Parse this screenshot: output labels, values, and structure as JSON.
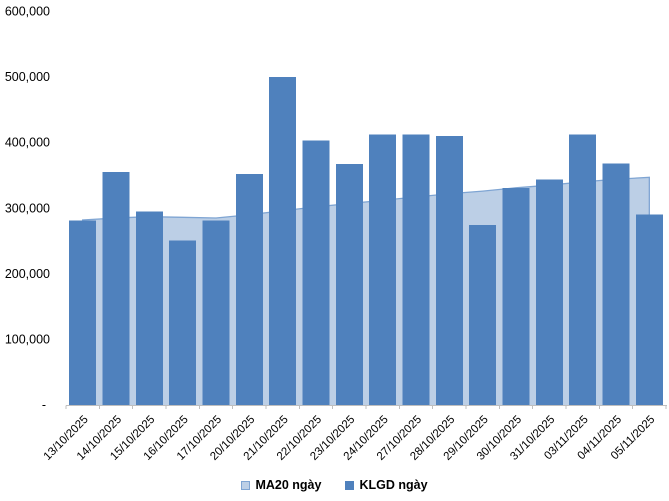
{
  "chart_data": {
    "type": "combo",
    "title": "",
    "xlabel": "",
    "ylabel": "",
    "categories": [
      "13/10/2025",
      "14/10/2025",
      "15/10/2025",
      "16/10/2025",
      "17/10/2025",
      "20/10/2025",
      "21/10/2025",
      "22/10/2025",
      "23/10/2025",
      "24/10/2025",
      "27/10/2025",
      "28/10/2025",
      "29/10/2025",
      "30/10/2025",
      "31/10/2025",
      "03/11/2025",
      "04/11/2025",
      "05/11/2025"
    ],
    "series": [
      {
        "name": "MA20 ngày",
        "type": "area",
        "color": "#BCCFE6",
        "line_color": "#7FA5D3",
        "values": [
          282000,
          285000,
          287000,
          286000,
          285000,
          290000,
          296000,
          302000,
          307000,
          312000,
          317000,
          322000,
          326000,
          331000,
          335000,
          340000,
          344000,
          347000
        ]
      },
      {
        "name": "KLGD ngày",
        "type": "bar",
        "color": "#4F81BD",
        "values": [
          281000,
          355000,
          295000,
          251000,
          281000,
          352000,
          500000,
          403000,
          367000,
          412000,
          412000,
          410000,
          274000,
          331000,
          344000,
          412000,
          368000,
          290000
        ]
      }
    ],
    "ylim": [
      0,
      600000
    ],
    "yticks": [
      {
        "value": 600000,
        "label": "600,000"
      },
      {
        "value": 500000,
        "label": "500,000"
      },
      {
        "value": 400000,
        "label": "400,000"
      },
      {
        "value": 300000,
        "label": "300,000"
      },
      {
        "value": 200000,
        "label": "200,000"
      },
      {
        "value": 100000,
        "label": "100,000"
      },
      {
        "value": 0,
        "label": "-"
      }
    ],
    "grid": false,
    "legend_position": "bottom",
    "axis_color": "#BFBFBF",
    "text_color": "#000000",
    "background": "#FFFFFF"
  }
}
